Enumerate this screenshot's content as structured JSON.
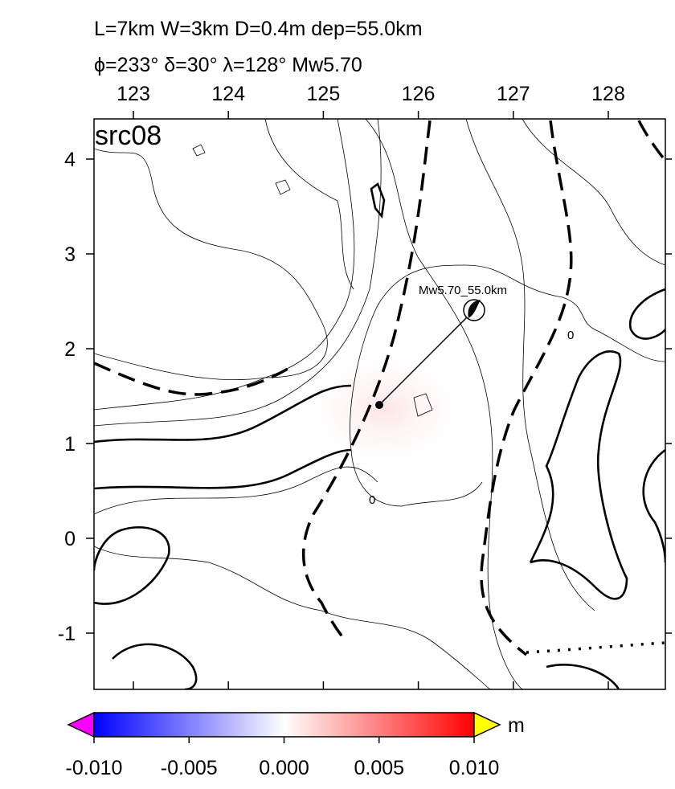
{
  "header": {
    "line1": "L=7km W=3km D=0.4m dep=55.0km",
    "line2": "ϕ=233° δ=30° λ=128° Mw5.70"
  },
  "map": {
    "label": "src08",
    "xticks": [
      "123",
      "124",
      "125",
      "126",
      "127",
      "128"
    ],
    "yticks": [
      "4",
      "3",
      "2",
      "1",
      "0",
      "-1"
    ],
    "source_label": "Mw5.70_55.0km",
    "contour_labels": [
      "0",
      "0"
    ]
  },
  "colorbar": {
    "unit": "m",
    "ticks": [
      "-0.010",
      "-0.005",
      "0.000",
      "0.005",
      "0.010"
    ]
  }
}
